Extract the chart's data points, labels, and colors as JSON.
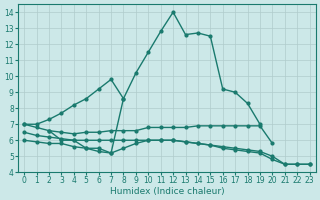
{
  "xlabel": "Humidex (Indice chaleur)",
  "xlim": [
    -0.5,
    23.5
  ],
  "ylim": [
    4,
    14.5
  ],
  "yticks": [
    4,
    5,
    6,
    7,
    8,
    9,
    10,
    11,
    12,
    13,
    14
  ],
  "xticks": [
    0,
    1,
    2,
    3,
    4,
    5,
    6,
    7,
    8,
    9,
    10,
    11,
    12,
    13,
    14,
    15,
    16,
    17,
    18,
    19,
    20,
    21,
    22,
    23
  ],
  "bg_color": "#cce8e8",
  "grid_color": "#b0cccc",
  "line_color": "#1a7a6e",
  "curves": [
    {
      "x": [
        0,
        1,
        2,
        3,
        4,
        5,
        6,
        7,
        8,
        9,
        10,
        11,
        12,
        13,
        14,
        15,
        16,
        17,
        18,
        19
      ],
      "y": [
        7.0,
        7.0,
        7.3,
        7.7,
        8.2,
        8.6,
        9.2,
        9.8,
        8.6,
        10.2,
        11.5,
        12.8,
        14.0,
        12.6,
        12.7,
        12.5,
        9.2,
        9.0,
        8.3,
        7.0
      ]
    },
    {
      "x": [
        0,
        1,
        2,
        3,
        4,
        5,
        6,
        7,
        8,
        9,
        10,
        11,
        12,
        13,
        14,
        15,
        16,
        17,
        18,
        19,
        20
      ],
      "y": [
        7.0,
        6.8,
        6.6,
        6.5,
        6.4,
        6.5,
        6.5,
        6.6,
        6.6,
        6.6,
        6.8,
        6.8,
        6.8,
        6.8,
        6.9,
        6.9,
        6.9,
        6.9,
        6.9,
        6.9,
        5.8
      ]
    },
    {
      "x": [
        0,
        1,
        2,
        3,
        4,
        5,
        6,
        7,
        8,
        9,
        10,
        11,
        12,
        13,
        14,
        15,
        16,
        17,
        18,
        19,
        20,
        21,
        22,
        23
      ],
      "y": [
        6.5,
        6.3,
        6.2,
        6.1,
        6.0,
        6.0,
        6.0,
        6.0,
        6.0,
        6.0,
        6.0,
        6.0,
        6.0,
        5.9,
        5.8,
        5.7,
        5.6,
        5.5,
        5.4,
        5.3,
        5.0,
        4.5,
        4.5,
        4.5
      ]
    },
    {
      "x": [
        0,
        1,
        2,
        3,
        4,
        5,
        6,
        7,
        8,
        9,
        10,
        11,
        12,
        13,
        14,
        15,
        16,
        17,
        18,
        19,
        20,
        21,
        22,
        23
      ],
      "y": [
        6.0,
        5.9,
        5.8,
        5.8,
        5.6,
        5.5,
        5.3,
        5.2,
        5.5,
        5.8,
        6.0,
        6.0,
        6.0,
        5.9,
        5.8,
        5.7,
        5.5,
        5.4,
        5.3,
        5.2,
        4.8,
        4.5,
        4.5,
        4.5
      ]
    },
    {
      "x": [
        2,
        3,
        4,
        5,
        6,
        7,
        8
      ],
      "y": [
        6.6,
        6.0,
        6.0,
        5.5,
        5.5,
        5.2,
        8.6
      ]
    }
  ]
}
